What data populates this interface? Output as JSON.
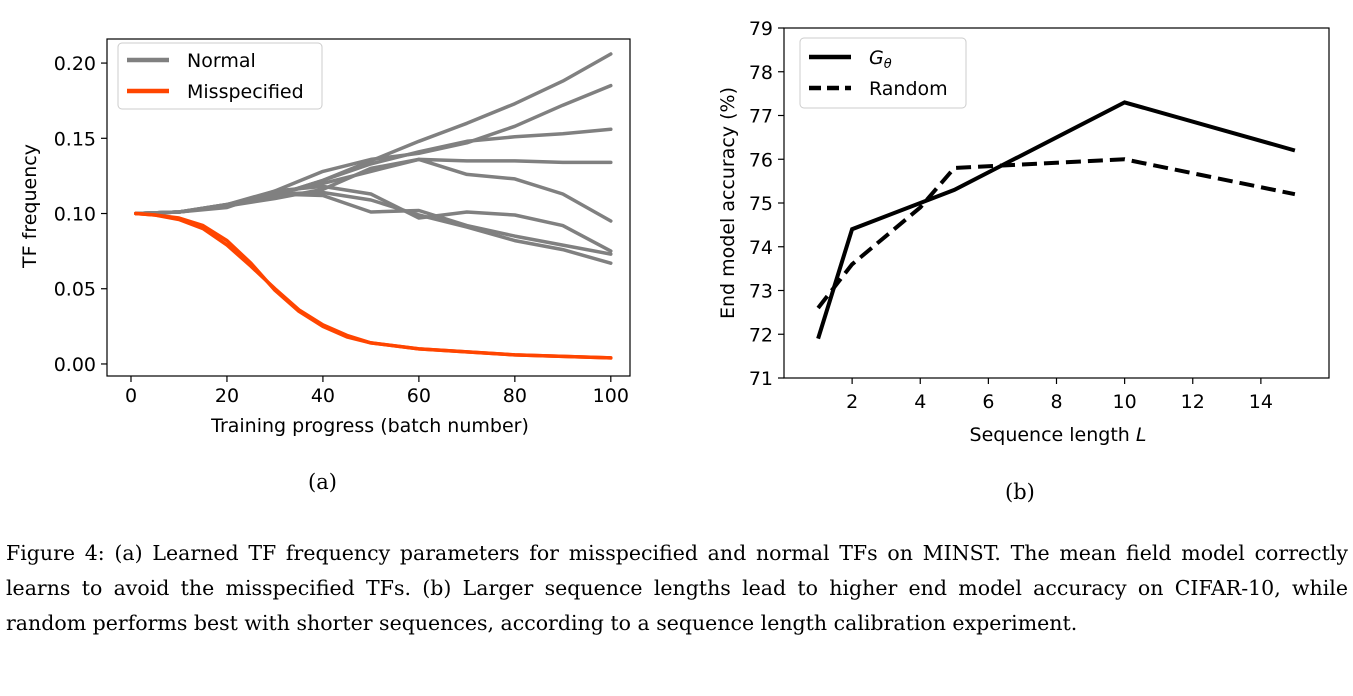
{
  "panels": {
    "a": {
      "sublabel": "(a)"
    },
    "b": {
      "sublabel": "(b)"
    }
  },
  "caption": "Figure 4: (a) Learned TF frequency parameters for misspecified and normal TFs on MINST. The mean field model correctly learns to avoid the misspecified TFs. (b) Larger sequence lengths lead to higher end model accuracy on CIFAR-10, while random performs best with shorter sequences, according to a sequence length calibration experiment.",
  "chart_data": [
    {
      "type": "line",
      "panel": "(a)",
      "xlabel": "Training progress (batch number)",
      "ylabel": "TF frequency",
      "xlim": [
        -5,
        104
      ],
      "ylim": [
        -0.008,
        0.216
      ],
      "xticks": [
        0,
        20,
        40,
        60,
        80,
        100
      ],
      "yticks": [
        0.0,
        0.05,
        0.1,
        0.15,
        0.2
      ],
      "ytick_labels": [
        "0.00",
        "0.05",
        "0.10",
        "0.15",
        "0.20"
      ],
      "grid": false,
      "legend_position": "top-left",
      "colors": {
        "Normal": "#808080",
        "Misspecified": "#ff4500"
      },
      "legend": [
        "Normal",
        "Misspecified"
      ],
      "series": [
        {
          "legend": "Normal",
          "x": [
            1,
            10,
            20,
            30,
            40,
            50,
            60,
            70,
            80,
            90,
            100
          ],
          "y": [
            0.1,
            0.101,
            0.106,
            0.112,
            0.122,
            0.135,
            0.148,
            0.16,
            0.173,
            0.188,
            0.206
          ]
        },
        {
          "legend": "Normal",
          "x": [
            1,
            10,
            20,
            30,
            40,
            50,
            60,
            70,
            80,
            90,
            100
          ],
          "y": [
            0.1,
            0.101,
            0.106,
            0.115,
            0.128,
            0.136,
            0.14,
            0.147,
            0.158,
            0.172,
            0.185
          ]
        },
        {
          "legend": "Normal",
          "x": [
            1,
            10,
            20,
            30,
            40,
            50,
            60,
            70,
            80,
            90,
            100
          ],
          "y": [
            0.1,
            0.101,
            0.105,
            0.112,
            0.122,
            0.133,
            0.141,
            0.148,
            0.151,
            0.153,
            0.156
          ]
        },
        {
          "legend": "Normal",
          "x": [
            1,
            10,
            20,
            30,
            40,
            50,
            60,
            70,
            80,
            90,
            100
          ],
          "y": [
            0.1,
            0.101,
            0.105,
            0.11,
            0.116,
            0.13,
            0.136,
            0.135,
            0.135,
            0.134,
            0.134
          ]
        },
        {
          "legend": "Normal",
          "x": [
            1,
            10,
            20,
            30,
            40,
            50,
            60,
            70,
            80,
            90,
            100
          ],
          "y": [
            0.1,
            0.101,
            0.106,
            0.113,
            0.12,
            0.128,
            0.136,
            0.126,
            0.123,
            0.113,
            0.095
          ]
        },
        {
          "legend": "Normal",
          "x": [
            1,
            10,
            20,
            30,
            40,
            50,
            60,
            70,
            80,
            90,
            100
          ],
          "y": [
            0.1,
            0.101,
            0.104,
            0.115,
            0.118,
            0.113,
            0.097,
            0.101,
            0.099,
            0.092,
            0.075
          ]
        },
        {
          "legend": "Normal",
          "x": [
            1,
            10,
            20,
            30,
            40,
            50,
            60,
            70,
            80,
            90,
            100
          ],
          "y": [
            0.1,
            0.101,
            0.105,
            0.113,
            0.112,
            0.101,
            0.102,
            0.092,
            0.085,
            0.079,
            0.073
          ]
        },
        {
          "legend": "Normal",
          "x": [
            1,
            10,
            20,
            30,
            40,
            50,
            60,
            70,
            80,
            90,
            100
          ],
          "y": [
            0.1,
            0.101,
            0.105,
            0.113,
            0.114,
            0.109,
            0.099,
            0.091,
            0.082,
            0.076,
            0.067
          ]
        },
        {
          "legend": "Misspecified",
          "x": [
            1,
            5,
            10,
            15,
            20,
            25,
            30,
            35,
            40,
            45,
            50,
            60,
            70,
            80,
            90,
            100
          ],
          "y": [
            0.1,
            0.099,
            0.096,
            0.09,
            0.079,
            0.065,
            0.05,
            0.036,
            0.026,
            0.019,
            0.014,
            0.01,
            0.008,
            0.006,
            0.005,
            0.004
          ]
        },
        {
          "legend": "Misspecified",
          "x": [
            1,
            5,
            10,
            15,
            20,
            25,
            30,
            35,
            40,
            45,
            50,
            60,
            70,
            80,
            90,
            100
          ],
          "y": [
            0.1,
            0.099,
            0.097,
            0.092,
            0.082,
            0.067,
            0.049,
            0.035,
            0.025,
            0.018,
            0.014,
            0.01,
            0.008,
            0.006,
            0.005,
            0.004
          ]
        }
      ]
    },
    {
      "type": "line",
      "panel": "(b)",
      "xlabel": "Sequence length L",
      "ylabel": "End model accuracy (%)",
      "xlim": [
        0,
        16
      ],
      "ylim": [
        71,
        79
      ],
      "xticks": [
        2,
        4,
        6,
        8,
        10,
        12,
        14
      ],
      "yticks": [
        71,
        72,
        73,
        74,
        75,
        76,
        77,
        78,
        79
      ],
      "grid": false,
      "legend_position": "top-left",
      "series": [
        {
          "name": "Gθ",
          "style": "solid",
          "color": "#000000",
          "x": [
            1,
            2,
            4,
            5,
            10,
            15
          ],
          "y": [
            71.9,
            74.4,
            75.0,
            75.3,
            77.3,
            76.2
          ]
        },
        {
          "name": "Random",
          "style": "dashed",
          "color": "#000000",
          "x": [
            1,
            2,
            4,
            5,
            10,
            15
          ],
          "y": [
            72.6,
            73.6,
            74.9,
            75.8,
            76.0,
            75.2
          ]
        }
      ]
    }
  ]
}
